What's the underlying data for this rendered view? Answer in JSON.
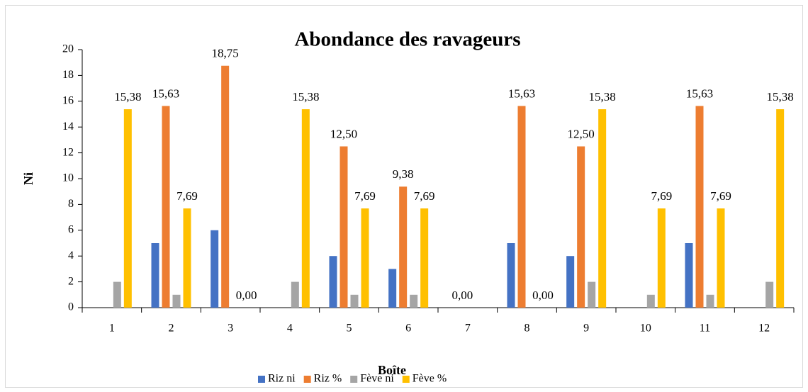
{
  "chart_data": {
    "type": "bar",
    "title": "Abondance des ravageurs",
    "x_label": "Boîte",
    "y_label": "Ni",
    "categories": [
      "1",
      "2",
      "3",
      "4",
      "5",
      "6",
      "7",
      "8",
      "9",
      "10",
      "11",
      "12"
    ],
    "series": [
      {
        "name": "Riz ni",
        "color": "#4472c4",
        "values": [
          0,
          5,
          6,
          0,
          4,
          3,
          0,
          5,
          4,
          0,
          5,
          0
        ]
      },
      {
        "name": "Riz %",
        "color": "#ed7d31",
        "values": [
          null,
          15.63,
          18.75,
          null,
          12.5,
          9.38,
          0,
          15.63,
          12.5,
          null,
          15.63,
          null
        ],
        "value_labels": [
          null,
          "15,63",
          "18,75",
          null,
          "12,50",
          "9,38",
          "0,00",
          "15,63",
          "12,50",
          null,
          "15,63",
          null
        ]
      },
      {
        "name": "Fève ni",
        "color": "#a5a5a5",
        "values": [
          2,
          1,
          0,
          2,
          1,
          1,
          0,
          0,
          2,
          1,
          1,
          2
        ]
      },
      {
        "name": "Fève %",
        "color": "#ffc000",
        "values": [
          15.38,
          7.69,
          0,
          15.38,
          7.69,
          7.69,
          null,
          0,
          15.38,
          7.69,
          7.69,
          15.38
        ],
        "value_labels": [
          "15,38",
          "7,69",
          "0,00",
          "15,38",
          "7,69",
          "7,69",
          null,
          "0,00",
          "15,38",
          "7,69",
          "7,69",
          "15,38"
        ]
      }
    ],
    "ylim": [
      0,
      20
    ],
    "yticks": [
      0,
      2,
      4,
      6,
      8,
      10,
      12,
      14,
      16,
      18,
      20
    ],
    "grid": false,
    "legend": "bottom"
  }
}
